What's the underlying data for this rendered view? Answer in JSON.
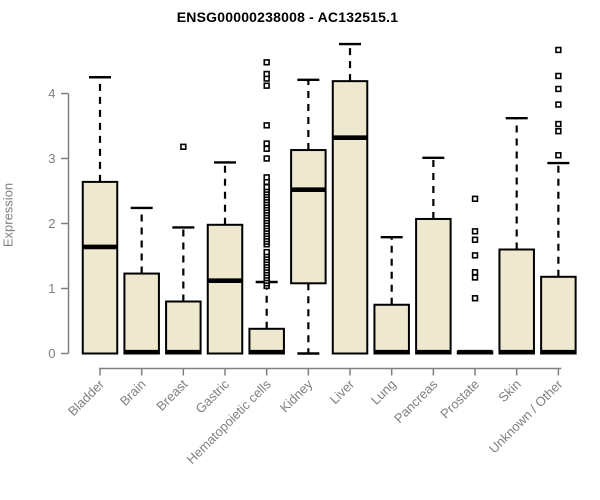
{
  "chart_data": {
    "type": "boxplot",
    "title": "ENSG00000238008 - AC132515.1",
    "ylabel": "Expression",
    "xlabel": "",
    "ylim": [
      0,
      4.8
    ],
    "y_ticks": [
      0,
      1,
      2,
      3,
      4
    ],
    "grid": "off",
    "legend": "none",
    "colors": {
      "box_fill": "#EDE8CE",
      "box_border": "#000000",
      "median": "#000000",
      "whisker": "#000000",
      "outlier_stroke": "#000000",
      "outlier_fill": "#FFFFFF",
      "axis": "#808080",
      "tick_text": "#808080",
      "title_text": "#000000",
      "background": "#FFFFFF"
    },
    "categories": [
      "Bladder",
      "Brain",
      "Breast",
      "Gastric",
      "Hematopoietic cells",
      "Kidney",
      "Liver",
      "Lung",
      "Pancreas",
      "Prostate",
      "Skin",
      "Unknown / Other"
    ],
    "series": [
      {
        "name": "Bladder",
        "whisker_low": 0,
        "q1": 0,
        "median": 1.64,
        "q3": 2.64,
        "whisker_high": 4.25,
        "outliers": []
      },
      {
        "name": "Brain",
        "whisker_low": 0,
        "q1": 0,
        "median": 0.02,
        "q3": 1.23,
        "whisker_high": 2.24,
        "outliers": []
      },
      {
        "name": "Breast",
        "whisker_low": 0,
        "q1": 0,
        "median": 0.02,
        "q3": 0.8,
        "whisker_high": 1.94,
        "outliers": [
          3.18
        ]
      },
      {
        "name": "Gastric",
        "whisker_low": 0,
        "q1": 0,
        "median": 1.12,
        "q3": 1.98,
        "whisker_high": 2.94,
        "outliers": []
      },
      {
        "name": "Hematopoietic cells",
        "whisker_low": 0,
        "q1": 0,
        "median": 0.02,
        "q3": 0.38,
        "whisker_high": 1.1,
        "outliers": [
          1.04,
          1.08,
          1.12,
          1.16,
          1.2,
          1.24,
          1.28,
          1.32,
          1.36,
          1.4,
          1.44,
          1.48,
          1.52,
          1.56,
          1.68,
          1.72,
          1.76,
          1.8,
          1.84,
          1.88,
          1.92,
          1.96,
          2.0,
          2.04,
          2.08,
          2.12,
          2.16,
          2.2,
          2.24,
          2.28,
          2.32,
          2.36,
          2.4,
          2.44,
          2.48,
          2.52,
          2.56,
          2.64,
          2.71,
          3.0,
          3.15,
          3.23,
          3.51,
          4.12,
          4.23,
          4.3,
          4.48
        ]
      },
      {
        "name": "Kidney",
        "whisker_low": 0,
        "q1": 1.08,
        "median": 2.52,
        "q3": 3.13,
        "whisker_high": 4.21,
        "outliers": []
      },
      {
        "name": "Liver",
        "whisker_low": 0,
        "q1": 0,
        "median": 3.32,
        "q3": 4.19,
        "whisker_high": 4.76,
        "outliers": []
      },
      {
        "name": "Lung",
        "whisker_low": 0,
        "q1": 0,
        "median": 0.02,
        "q3": 0.75,
        "whisker_high": 1.79,
        "outliers": []
      },
      {
        "name": "Pancreas",
        "whisker_low": 0,
        "q1": 0,
        "median": 0.02,
        "q3": 2.07,
        "whisker_high": 3.01,
        "outliers": []
      },
      {
        "name": "Prostate",
        "whisker_low": 0,
        "q1": 0,
        "median": 0.02,
        "q3": 0.03,
        "whisker_high": 0.03,
        "outliers": [
          0.85,
          1.17,
          1.25,
          1.51,
          1.75,
          1.88,
          2.38
        ]
      },
      {
        "name": "Skin",
        "whisker_low": 0,
        "q1": 0,
        "median": 0.02,
        "q3": 1.6,
        "whisker_high": 3.62,
        "outliers": []
      },
      {
        "name": "Unknown / Other",
        "whisker_low": 0,
        "q1": 0,
        "median": 0.02,
        "q3": 1.18,
        "whisker_high": 2.93,
        "outliers": [
          3.05,
          3.42,
          3.53,
          3.83,
          4.07,
          4.27,
          4.67
        ]
      }
    ]
  }
}
